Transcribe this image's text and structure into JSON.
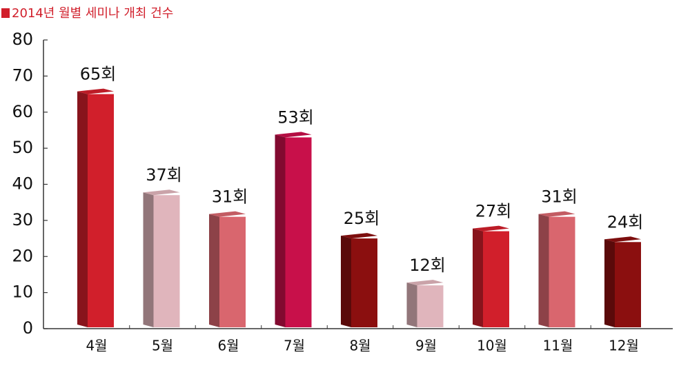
{
  "chart_data": {
    "type": "bar3d",
    "title": "2014년 월별 세미나 개최 건수",
    "categories": [
      "4월",
      "5월",
      "6월",
      "7월",
      "8월",
      "9월",
      "10월",
      "11월",
      "12월"
    ],
    "values": [
      65,
      37,
      31,
      53,
      25,
      12,
      27,
      31,
      24
    ],
    "value_labels": [
      "65회",
      "37회",
      "31회",
      "53회",
      "25회",
      "12회",
      "27회",
      "31회",
      "24회"
    ],
    "colors": [
      "#d11f2b",
      "#e0b5bc",
      "#d9666e",
      "#c8104a",
      "#8b0f0f",
      "#e0b5bc",
      "#d11f2b",
      "#d9666e",
      "#8b0f0f"
    ],
    "ylim": [
      0,
      80
    ],
    "yticks": [
      0,
      10,
      20,
      30,
      40,
      50,
      60,
      70,
      80
    ],
    "title_color": "#d11f2b"
  }
}
